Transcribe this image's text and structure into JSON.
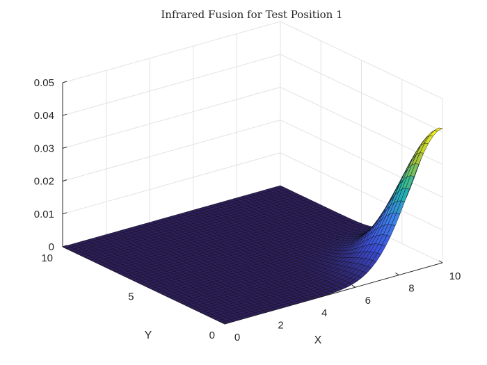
{
  "chart_data": {
    "type": "surface",
    "title": "Infrared Fusion for Test Position 1",
    "xlabel": "X",
    "ylabel": "Y",
    "zlabel": "",
    "xlim": [
      0,
      10
    ],
    "ylim": [
      0,
      10
    ],
    "zlim": [
      0,
      0.05
    ],
    "x_ticks": [
      "0",
      "2",
      "4",
      "6",
      "8",
      "10"
    ],
    "y_ticks": [
      "0",
      "5",
      "10"
    ],
    "z_ticks": [
      "0",
      "0.01",
      "0.02",
      "0.03",
      "0.04",
      "0.05"
    ],
    "grid": true,
    "colormap": "parula",
    "peak": {
      "x": 10,
      "y": 0,
      "z": 0.041
    },
    "surface_shape": "gaussian bump rising toward the corner x=10, y=0",
    "colors": {
      "low": "#2e1f5b",
      "mid": "#3d7fe8",
      "high": "#f7f018"
    }
  }
}
